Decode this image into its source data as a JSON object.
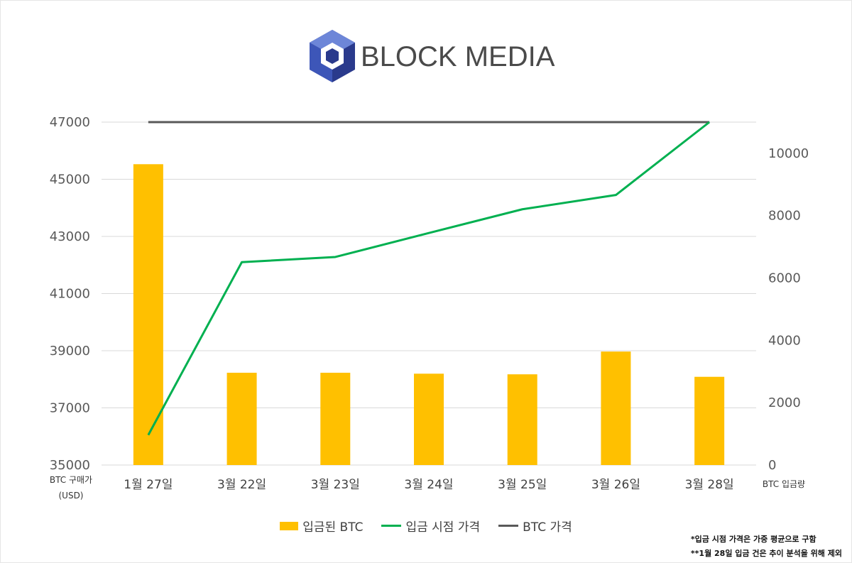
{
  "brand": {
    "name": "BLOCK MEDIA",
    "colors": {
      "hex_dark": "#2a3a8c",
      "hex_mid": "#3d56b8",
      "hex_light": "#6d86d8",
      "text": "#4a4a4a"
    }
  },
  "chart_data": {
    "type": "bar",
    "categories": [
      "1월 27일",
      "3월 22일",
      "3월 23일",
      "3월 24일",
      "3월 25일",
      "3월 26일",
      "3월 28일"
    ],
    "y_left": {
      "label": "BTC 구매가\n(USD)",
      "ticks": [
        35000,
        37000,
        39000,
        41000,
        43000,
        45000,
        47000
      ],
      "lim": [
        35000,
        47000
      ]
    },
    "y_right": {
      "label": "BTC 입금량",
      "ticks": [
        0,
        2000,
        4000,
        6000,
        8000,
        10000
      ],
      "lim": [
        0,
        11000
      ]
    },
    "series": [
      {
        "name": "입금된 BTC",
        "type": "bar",
        "axis": "right",
        "color": "#ffc000",
        "values": [
          9650,
          2960,
          2960,
          2930,
          2910,
          3640,
          2830
        ]
      },
      {
        "name": "입금 시점 가격",
        "type": "line",
        "axis": "left",
        "color": "#00b050",
        "values": [
          36050,
          42100,
          42280,
          43120,
          43950,
          44450,
          47000
        ]
      },
      {
        "name": "BTC 가격",
        "type": "line",
        "axis": "left",
        "color": "#595959",
        "values": [
          47000,
          47000,
          47000,
          47000,
          47000,
          47000,
          47000
        ]
      }
    ],
    "grid": true,
    "legend_position": "bottom"
  },
  "notes": [
    "*입금 시점 가격은 가중 평균으로 구함",
    "**1월 28일 입금 건은 추이 분석을 위해 제외"
  ]
}
